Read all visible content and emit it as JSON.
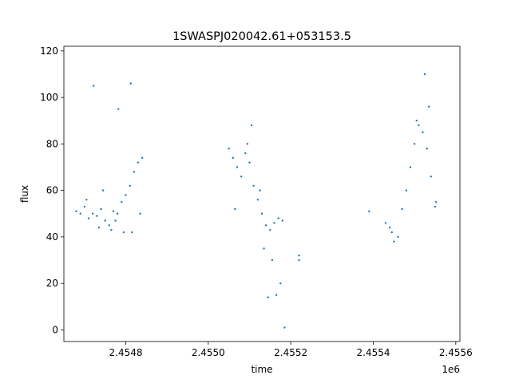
{
  "chart_data": {
    "type": "scatter",
    "title": "1SWASPJ020042.61+053153.5",
    "xlabel": "time",
    "ylabel": "flux",
    "x_offset_label": "1e6",
    "xlim": [
      2.45465,
      2.45561
    ],
    "ylim": [
      -5,
      122
    ],
    "xticks": [
      2.4548,
      2.455,
      2.4552,
      2.4554,
      2.4556
    ],
    "xtick_labels": [
      "2.4548",
      "2.4550",
      "2.4552",
      "2.4554",
      "2.4556"
    ],
    "yticks": [
      0,
      20,
      40,
      60,
      80,
      100,
      120
    ],
    "ytick_labels": [
      "0",
      "20",
      "40",
      "60",
      "80",
      "100",
      "120"
    ],
    "grid": false,
    "marker_color": "#1f77b4",
    "series": [
      {
        "x": [
          2.45468,
          2.45469,
          2.4547,
          2.45471,
          2.45472,
          2.45473,
          2.45474,
          2.45475,
          2.45476,
          2.45477,
          2.45478,
          2.45479,
          2.4548,
          2.45481,
          2.45482,
          2.45483,
          2.45484,
          2.454705,
          2.454735,
          2.454765,
          2.454795,
          2.454815,
          2.454835,
          2.454745,
          2.454775,
          2.454722,
          2.454782,
          2.454812,
          2.45505,
          2.45506,
          2.45507,
          2.45508,
          2.45509,
          2.4551,
          2.45511,
          2.45512,
          2.45513,
          2.45514,
          2.45515,
          2.45516,
          2.45517,
          2.45518,
          2.455065,
          2.455095,
          2.455125,
          2.455155,
          2.455175,
          2.455185,
          2.455105,
          2.455135,
          2.455145,
          2.455165,
          2.45522,
          2.45522,
          2.45539,
          2.45543,
          2.45544,
          2.45545,
          2.45546,
          2.45547,
          2.45548,
          2.45549,
          2.4555,
          2.45551,
          2.45552,
          2.45553,
          2.45554,
          2.45555,
          2.455445,
          2.455505,
          2.455535,
          2.455525,
          2.455552
        ],
        "y": [
          51,
          50,
          53,
          48,
          50,
          49,
          52,
          47,
          45,
          51,
          50,
          55,
          58,
          62,
          68,
          72,
          74,
          56,
          44,
          43,
          42,
          42,
          50,
          60,
          47,
          105,
          95,
          106,
          78,
          74,
          70,
          66,
          76,
          72,
          62,
          56,
          50,
          45,
          43,
          46,
          48,
          47,
          52,
          80,
          60,
          30,
          20,
          1,
          88,
          35,
          14,
          15,
          30,
          32,
          51,
          46,
          44,
          38,
          40,
          52,
          60,
          70,
          80,
          88,
          85,
          78,
          66,
          53,
          42,
          90,
          96,
          110,
          55
        ]
      }
    ]
  }
}
